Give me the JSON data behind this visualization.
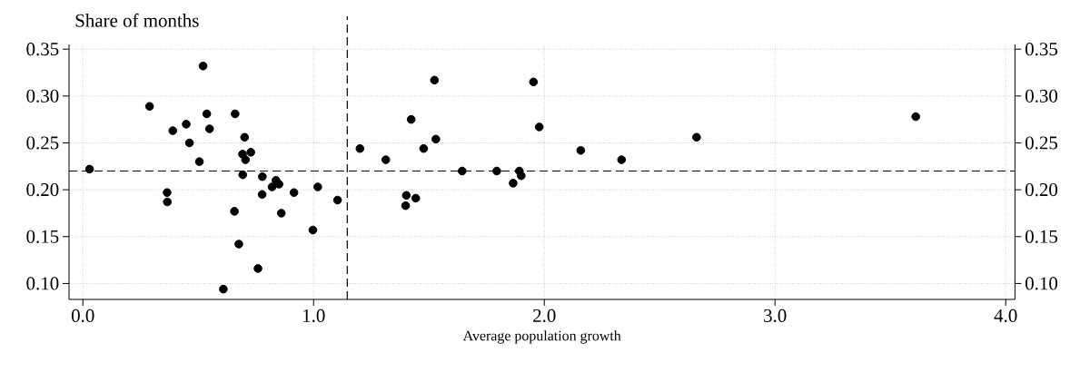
{
  "chart_data": {
    "type": "scatter",
    "ylabel": "Share of months",
    "xlabel": "Average population growth",
    "color": "#000000",
    "marker": "circle",
    "grid": true,
    "x": [
      0.029,
      0.289,
      0.365,
      0.366,
      0.39,
      0.448,
      0.462,
      0.505,
      0.521,
      0.537,
      0.549,
      0.609,
      0.657,
      0.66,
      0.676,
      0.693,
      0.692,
      0.701,
      0.705,
      0.728,
      0.759,
      0.777,
      0.778,
      0.82,
      0.837,
      0.85,
      0.86,
      0.915,
      0.997,
      1.018,
      1.104,
      1.201,
      1.313,
      1.399,
      1.402,
      1.423,
      1.443,
      1.477,
      1.524,
      1.53,
      1.644,
      1.794,
      1.865,
      1.892,
      1.9,
      1.953,
      1.978,
      2.158,
      2.335,
      2.66,
      3.61
    ],
    "values": [
      0.222,
      0.289,
      0.197,
      0.187,
      0.263,
      0.27,
      0.25,
      0.23,
      0.332,
      0.281,
      0.265,
      0.094,
      0.177,
      0.281,
      0.142,
      0.216,
      0.238,
      0.256,
      0.232,
      0.24,
      0.116,
      0.195,
      0.214,
      0.203,
      0.21,
      0.206,
      0.175,
      0.197,
      0.157,
      0.203,
      0.189,
      0.244,
      0.232,
      0.183,
      0.194,
      0.275,
      0.191,
      0.244,
      0.317,
      0.254,
      0.22,
      0.22,
      0.207,
      0.22,
      0.215,
      0.315,
      0.267,
      0.242,
      0.232,
      0.256,
      0.278
    ],
    "xlim": [
      -0.06,
      4.04
    ],
    "ylim": [
      0.083,
      0.355
    ],
    "y2lim": [
      0.083,
      0.355
    ],
    "xticks": [
      {
        "value": 0,
        "label": "0.0"
      },
      {
        "value": 1,
        "label": "1.0"
      },
      {
        "value": 2,
        "label": "2.0"
      },
      {
        "value": 3,
        "label": "3.0"
      },
      {
        "value": 4,
        "label": "4.0"
      }
    ],
    "yticks": [
      {
        "value": 0.1,
        "label": "0.10"
      },
      {
        "value": 0.15,
        "label": "0.15"
      },
      {
        "value": 0.2,
        "label": "0.20"
      },
      {
        "value": 0.25,
        "label": "0.25"
      },
      {
        "value": 0.3,
        "label": "0.30"
      },
      0.35
    ],
    "y2ticks": [
      {
        "value": 0.1,
        "label": "0.10"
      },
      {
        "value": 0.15,
        "label": "0.15"
      },
      {
        "value": 0.2,
        "label": "0.20"
      },
      {
        "value": 0.25,
        "label": "0.25"
      },
      {
        "value": 0.3,
        "label": "0.30"
      },
      0.35
    ],
    "ref_lines": [
      {
        "axis": "x",
        "value": 1.146,
        "line_style": "dashed",
        "color": "#000000"
      },
      {
        "axis": "y",
        "value": 0.22,
        "line_style": "dashed",
        "color": "#000000"
      }
    ]
  }
}
